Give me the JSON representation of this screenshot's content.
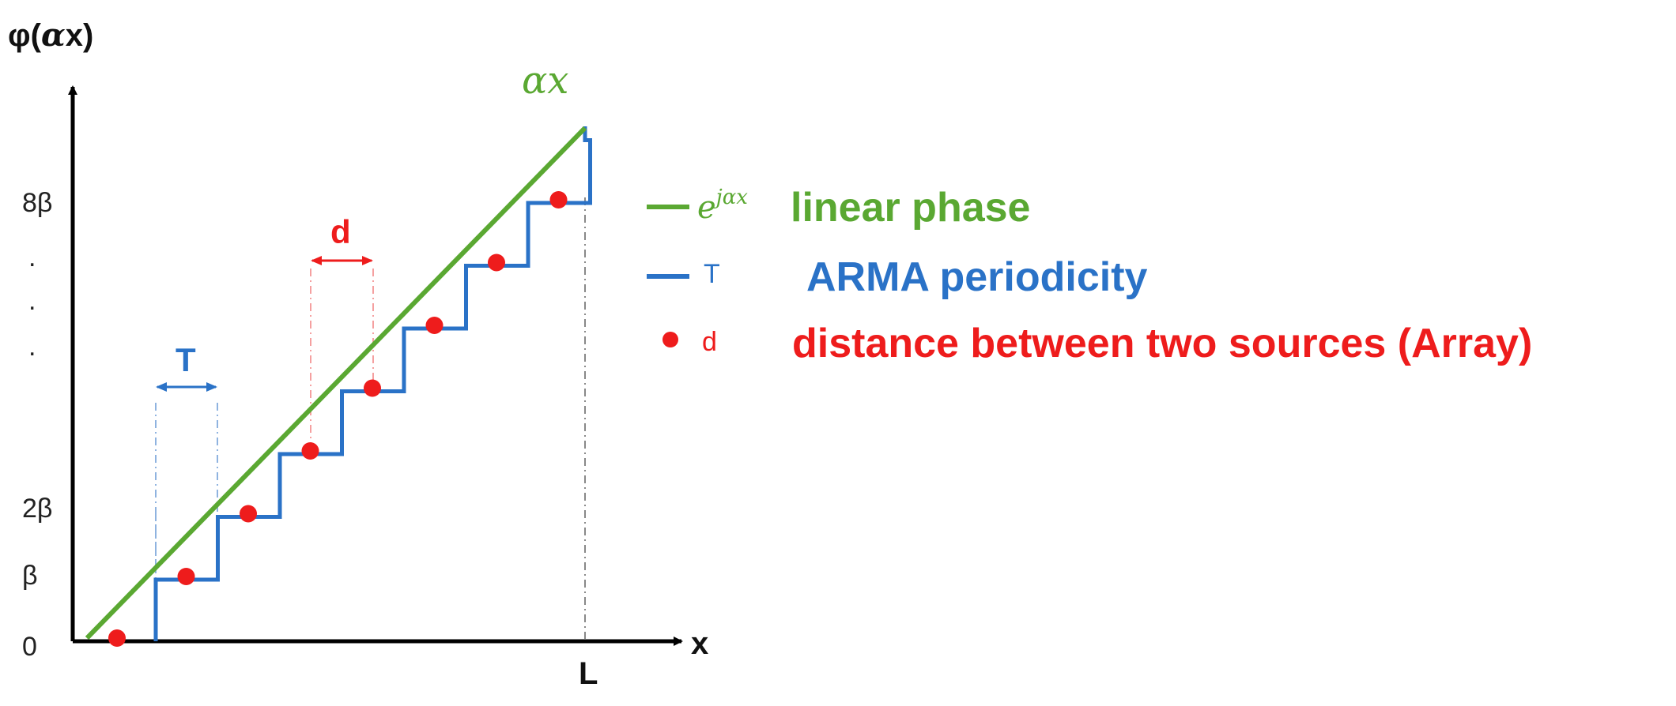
{
  "axes": {
    "y_label_prefix": "φ(",
    "y_label_alpha": "α",
    "y_label_suffix": "x)",
    "x_label": "x",
    "x_end_label": "L"
  },
  "y_ticks": [
    {
      "label": "0",
      "level": 0
    },
    {
      "label": "β",
      "level": 1
    },
    {
      "label": "2β",
      "level": 2
    },
    {
      "label": "8β",
      "level": 8
    }
  ],
  "y_ellipsis": [
    ".",
    ".",
    "."
  ],
  "line_label": "αx",
  "dims": {
    "T": "T",
    "d": "d"
  },
  "legend": {
    "green": {
      "symbol_base": "e",
      "symbol_sup": "jαx",
      "text": "linear phase"
    },
    "blue": {
      "symbol": "T",
      "text": "ARMA periodicity"
    },
    "red": {
      "symbol": "d",
      "text": "distance between two sources  (Array)"
    }
  },
  "colors": {
    "green": "#5aa832",
    "blue": "#2a72c7",
    "red": "#ee1c1c",
    "axis": "#000000",
    "guide": "#888888"
  },
  "chart_data": {
    "type": "line",
    "steps": 8,
    "series": [
      {
        "kind": "linear",
        "x": [
          0,
          8
        ],
        "y": [
          0,
          8
        ]
      },
      {
        "kind": "staircase",
        "x_start": 0,
        "x_end": 8,
        "step_width": 1
      },
      {
        "kind": "points",
        "x": [
          0,
          1,
          2,
          3,
          4,
          5,
          6,
          7
        ],
        "y": [
          0,
          1,
          2,
          3,
          4,
          5,
          6,
          7
        ]
      }
    ]
  }
}
